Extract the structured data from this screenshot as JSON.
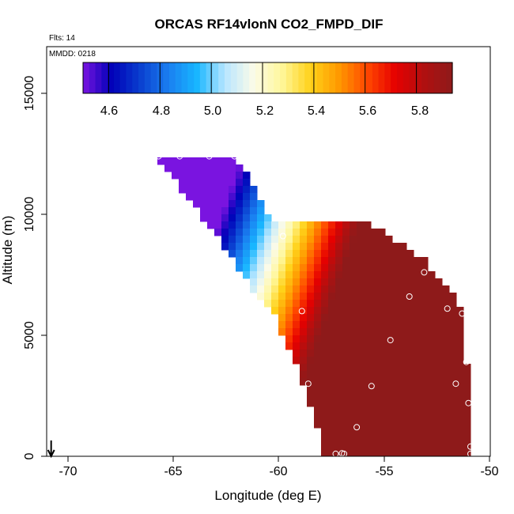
{
  "chart_data": {
    "type": "heatmap",
    "title": "ORCAS RF14vlonN CO2_FMPD_DIF",
    "flights_note": "Flts: 14",
    "date_note": "MMDD: 0218",
    "xlabel": "Longitude (deg E)",
    "ylabel": "Altitude (m)",
    "xlim": [
      -71,
      -50
    ],
    "ylim": [
      0,
      16700
    ],
    "x_ticks": [
      -70,
      -65,
      -60,
      -55,
      -50
    ],
    "y_ticks": [
      0,
      5000,
      10000,
      15000
    ],
    "x_tick_labels": [
      "-70",
      "-65",
      "-60",
      "-55",
      "-50"
    ],
    "y_tick_labels": [
      "0",
      "5000",
      "10000",
      "15000"
    ],
    "colorbar": {
      "range": [
        4.5,
        5.94
      ],
      "ticks": [
        4.6,
        4.8,
        5.0,
        5.2,
        5.4,
        5.6,
        5.8
      ],
      "tick_labels": [
        "4.6",
        "4.8",
        "5.0",
        "5.2",
        "5.4",
        "5.6",
        "5.8"
      ],
      "colors": [
        "#7a14e0",
        "#0000b8",
        "#0a3ecf",
        "#1a7ef0",
        "#18b6ff",
        "#b8e6ff",
        "#fbfbe8",
        "#fff79a",
        "#ffd21a",
        "#ff9900",
        "#ff4800",
        "#e60000",
        "#b01010",
        "#8e1a1a"
      ]
    },
    "field_polygon": [
      [
        -65.8,
        12400
      ],
      [
        -62.0,
        12400
      ],
      [
        -60.3,
        9600
      ],
      [
        -56.0,
        9800
      ],
      [
        -53.2,
        8200
      ],
      [
        -51.2,
        6100
      ],
      [
        -51.0,
        2600
      ],
      [
        -50.9,
        0
      ],
      [
        -57.8,
        0
      ],
      [
        -58.8,
        3000
      ],
      [
        -60.2,
        5800
      ],
      [
        -61.5,
        7200
      ],
      [
        -62.5,
        8600
      ],
      [
        -64.0,
        10300
      ]
    ],
    "sample_points": [
      {
        "lon": -65.7,
        "alt": 12400
      },
      {
        "lon": -64.7,
        "alt": 12400
      },
      {
        "lon": -63.3,
        "alt": 12400
      },
      {
        "lon": -62.1,
        "alt": 12400
      },
      {
        "lon": -60.8,
        "alt": 11800
      },
      {
        "lon": -59.8,
        "alt": 9100
      },
      {
        "lon": -53.1,
        "alt": 7600
      },
      {
        "lon": -53.8,
        "alt": 6600
      },
      {
        "lon": -58.9,
        "alt": 6000
      },
      {
        "lon": -52.0,
        "alt": 6100
      },
      {
        "lon": -51.3,
        "alt": 5900
      },
      {
        "lon": -54.7,
        "alt": 4800
      },
      {
        "lon": -51.1,
        "alt": 3900
      },
      {
        "lon": -58.6,
        "alt": 3000
      },
      {
        "lon": -55.6,
        "alt": 2900
      },
      {
        "lon": -51.6,
        "alt": 3000
      },
      {
        "lon": -51.0,
        "alt": 2200
      },
      {
        "lon": -56.3,
        "alt": 1200
      },
      {
        "lon": -50.9,
        "alt": 400
      },
      {
        "lon": -57.3,
        "alt": 100
      },
      {
        "lon": -57.0,
        "alt": 120
      },
      {
        "lon": -56.9,
        "alt": 100
      },
      {
        "lon": -50.9,
        "alt": 100
      }
    ],
    "marker": {
      "lon": -70.8,
      "direction": "down"
    }
  }
}
